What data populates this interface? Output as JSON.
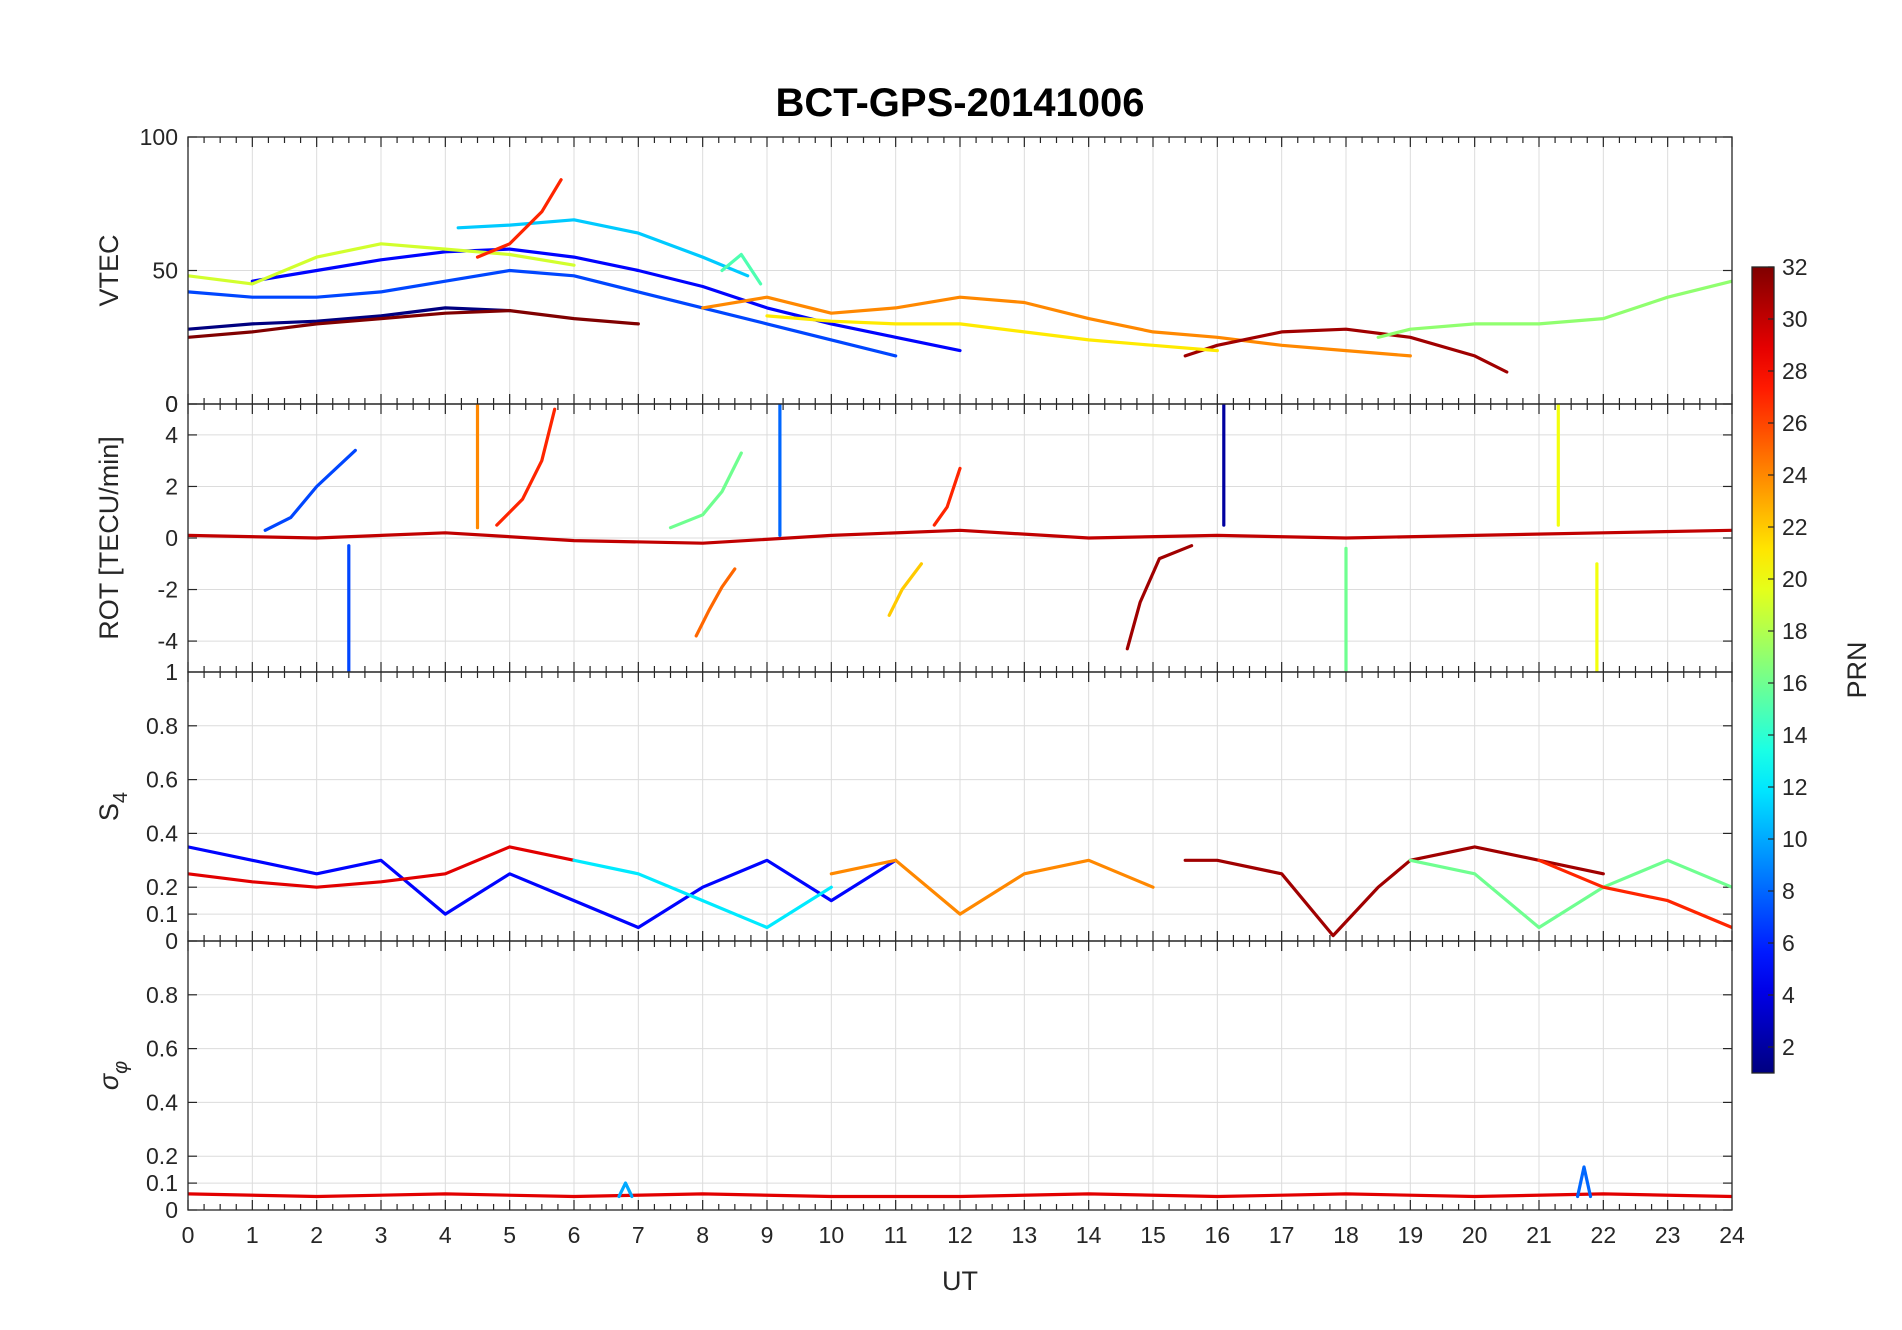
{
  "chart_data": {
    "type": "line",
    "title": "BCT-GPS-20141006",
    "xlabel": "UT",
    "xlim": [
      0,
      24
    ],
    "x_ticks": [
      "0",
      "1",
      "2",
      "3",
      "4",
      "5",
      "6",
      "7",
      "8",
      "9",
      "10",
      "11",
      "12",
      "13",
      "14",
      "15",
      "16",
      "17",
      "18",
      "19",
      "20",
      "21",
      "22",
      "23",
      "24"
    ],
    "colorbar": {
      "label": "PRN",
      "range": [
        1,
        32
      ],
      "colormap": "jet",
      "ticks": [
        "2",
        "4",
        "6",
        "8",
        "10",
        "12",
        "14",
        "16",
        "18",
        "20",
        "22",
        "24",
        "26",
        "28",
        "30",
        "32"
      ]
    },
    "panels": [
      {
        "ylabel": "VTEC",
        "ylim": [
          0,
          100
        ],
        "y_ticks": [
          "0",
          "50",
          "100"
        ],
        "series": [
          {
            "prn": 1,
            "x": [
              0,
              1,
              2,
              3,
              4,
              5
            ],
            "y": [
              28,
              30,
              31,
              33,
              36,
              35
            ]
          },
          {
            "prn": 5,
            "x": [
              1,
              2,
              3,
              4,
              5,
              6,
              7,
              8,
              9,
              10,
              11,
              12
            ],
            "y": [
              46,
              50,
              54,
              57,
              58,
              55,
              50,
              44,
              36,
              30,
              25,
              20
            ]
          },
          {
            "prn": 7,
            "x": [
              0,
              1,
              2,
              3,
              4,
              5,
              6,
              7,
              8,
              9,
              10,
              11
            ],
            "y": [
              42,
              40,
              40,
              42,
              46,
              50,
              48,
              42,
              36,
              30,
              24,
              18
            ]
          },
          {
            "prn": 11,
            "x": [
              4.2,
              5,
              6,
              7,
              8,
              8.7
            ],
            "y": [
              66,
              67,
              69,
              64,
              55,
              48
            ]
          },
          {
            "prn": 15,
            "x": [
              8.3,
              8.6,
              8.9
            ],
            "y": [
              50,
              56,
              45
            ]
          },
          {
            "prn": 19,
            "x": [
              0,
              1,
              2,
              3,
              4,
              5,
              6
            ],
            "y": [
              48,
              45,
              55,
              60,
              58,
              56,
              52
            ]
          },
          {
            "prn": 24,
            "x": [
              8,
              9,
              10,
              11,
              12,
              13,
              14,
              15,
              16,
              17,
              18,
              19
            ],
            "y": [
              36,
              40,
              34,
              36,
              40,
              38,
              32,
              27,
              25,
              22,
              20,
              18
            ]
          },
          {
            "prn": 27,
            "x": [
              4.5,
              5,
              5.5,
              5.8
            ],
            "y": [
              55,
              60,
              72,
              84
            ]
          },
          {
            "prn": 32,
            "x": [
              0,
              1,
              2,
              3,
              4,
              5,
              6,
              7
            ],
            "y": [
              25,
              27,
              30,
              32,
              34,
              35,
              32,
              30
            ]
          },
          {
            "prn": 31,
            "x": [
              15.5,
              16,
              17,
              18,
              19,
              20,
              20.5
            ],
            "y": [
              18,
              22,
              27,
              28,
              25,
              18,
              12
            ]
          },
          {
            "prn": 17,
            "x": [
              18.5,
              19,
              20,
              21,
              22,
              23,
              24
            ],
            "y": [
              25,
              28,
              30,
              30,
              32,
              40,
              46
            ]
          },
          {
            "prn": 21,
            "x": [
              9,
              10,
              11,
              12,
              13,
              14,
              15,
              16
            ],
            "y": [
              33,
              31,
              30,
              30,
              27,
              24,
              22,
              20
            ]
          }
        ]
      },
      {
        "ylabel": "ROT [TECU/min]",
        "ylim": [
          -5.2,
          5.2
        ],
        "y_ticks": [
          "-4",
          "-2",
          "0",
          "2",
          "4"
        ],
        "corner_tick": "0",
        "series": [
          {
            "prn": 30,
            "x": [
              0,
              2,
              4,
              6,
              8,
              10,
              12,
              14,
              16,
              18,
              20,
              22,
              24
            ],
            "y": [
              0.1,
              0,
              0.2,
              -0.1,
              -0.2,
              0.1,
              0.3,
              0,
              0.1,
              0,
              0.1,
              0.2,
              0.3
            ]
          },
          {
            "prn": 7,
            "x": [
              1.2,
              1.6,
              2.0,
              2.6
            ],
            "y": [
              0.3,
              0.8,
              2.0,
              3.4
            ]
          },
          {
            "prn": 27,
            "x": [
              4.8,
              5.2,
              5.5,
              5.7
            ],
            "y": [
              0.5,
              1.5,
              3.0,
              5.0
            ]
          },
          {
            "prn": 16,
            "x": [
              7.5,
              8,
              8.3,
              8.6
            ],
            "y": [
              0.4,
              0.9,
              1.8,
              3.3
            ]
          },
          {
            "prn": 25,
            "x": [
              7.9,
              8.1,
              8.3,
              8.5
            ],
            "y": [
              -3.8,
              -2.8,
              -1.9,
              -1.2
            ]
          },
          {
            "prn": 31,
            "x": [
              14.6,
              14.8,
              15.1,
              15.6
            ],
            "y": [
              -4.3,
              -2.5,
              -0.8,
              -0.3
            ]
          },
          {
            "prn": 2,
            "x": [
              16.1,
              16.1
            ],
            "y": [
              5.2,
              0.5
            ]
          },
          {
            "prn": 8,
            "x": [
              9.2,
              9.2
            ],
            "y": [
              5.2,
              0.1
            ]
          },
          {
            "prn": 7,
            "x": [
              2.5,
              2.5
            ],
            "y": [
              -0.3,
              -5.2
            ]
          },
          {
            "prn": 16,
            "x": [
              18.0,
              18.0
            ],
            "y": [
              -0.4,
              -5.2
            ]
          },
          {
            "prn": 20,
            "x": [
              21.9,
              21.9
            ],
            "y": [
              -1.0,
              -5.2
            ]
          },
          {
            "prn": 20,
            "x": [
              21.3,
              21.3
            ],
            "y": [
              5.2,
              0.5
            ]
          },
          {
            "prn": 24,
            "x": [
              4.5,
              4.5
            ],
            "y": [
              5.2,
              0.4
            ]
          },
          {
            "prn": 27,
            "x": [
              11.6,
              11.8,
              12.0
            ],
            "y": [
              0.5,
              1.2,
              2.7
            ]
          },
          {
            "prn": 22,
            "x": [
              10.9,
              11.1,
              11.4
            ],
            "y": [
              -3.0,
              -2.0,
              -1.0
            ]
          }
        ]
      },
      {
        "ylabel": "S4",
        "ylim": [
          0,
          1
        ],
        "y_ticks": [
          "0",
          "0.1",
          "0.2",
          "0.4",
          "0.6",
          "0.8"
        ],
        "corner_tick": "1",
        "series": [
          {
            "prn": 5,
            "x": [
              0,
              1,
              2,
              3,
              4,
              5,
              6,
              7,
              8,
              9,
              10,
              11
            ],
            "y": [
              0.35,
              0.3,
              0.25,
              0.3,
              0.1,
              0.25,
              0.15,
              0.05,
              0.2,
              0.3,
              0.15,
              0.3
            ]
          },
          {
            "prn": 29,
            "x": [
              0,
              1,
              2,
              3,
              4,
              5,
              6
            ],
            "y": [
              0.25,
              0.22,
              0.2,
              0.22,
              0.25,
              0.35,
              0.3
            ]
          },
          {
            "prn": 12,
            "x": [
              6,
              7,
              8,
              9,
              10
            ],
            "y": [
              0.3,
              0.25,
              0.15,
              0.05,
              0.2
            ]
          },
          {
            "prn": 24,
            "x": [
              10,
              11,
              12,
              13,
              14,
              15
            ],
            "y": [
              0.25,
              0.3,
              0.1,
              0.25,
              0.3,
              0.2
            ]
          },
          {
            "prn": 31,
            "x": [
              15.5,
              16,
              17,
              17.8,
              18.5,
              19,
              20,
              21,
              22
            ],
            "y": [
              0.3,
              0.3,
              0.25,
              0.02,
              0.2,
              0.3,
              0.35,
              0.3,
              0.25
            ]
          },
          {
            "prn": 16,
            "x": [
              19,
              20,
              21,
              22,
              23,
              24
            ],
            "y": [
              0.3,
              0.25,
              0.05,
              0.2,
              0.3,
              0.2
            ]
          },
          {
            "prn": 27,
            "x": [
              21,
              22,
              23,
              24
            ],
            "y": [
              0.3,
              0.2,
              0.15,
              0.05
            ]
          }
        ]
      },
      {
        "ylabel": "σ φ",
        "ylim": [
          0,
          1
        ],
        "y_ticks": [
          "0",
          "0.1",
          "0.2",
          "0.4",
          "0.6",
          "0.8"
        ],
        "series": [
          {
            "prn": 29,
            "x": [
              0,
              2,
              4,
              6,
              8,
              10,
              12,
              14,
              16,
              18,
              20,
              22,
              24
            ],
            "y": [
              0.06,
              0.05,
              0.06,
              0.05,
              0.06,
              0.05,
              0.05,
              0.06,
              0.05,
              0.06,
              0.05,
              0.06,
              0.05
            ]
          },
          {
            "prn": 10,
            "x": [
              6.7,
              6.8,
              6.9
            ],
            "y": [
              0.05,
              0.1,
              0.05
            ]
          },
          {
            "prn": 8,
            "x": [
              21.6,
              21.7,
              21.8
            ],
            "y": [
              0.05,
              0.16,
              0.05
            ]
          }
        ]
      }
    ]
  }
}
